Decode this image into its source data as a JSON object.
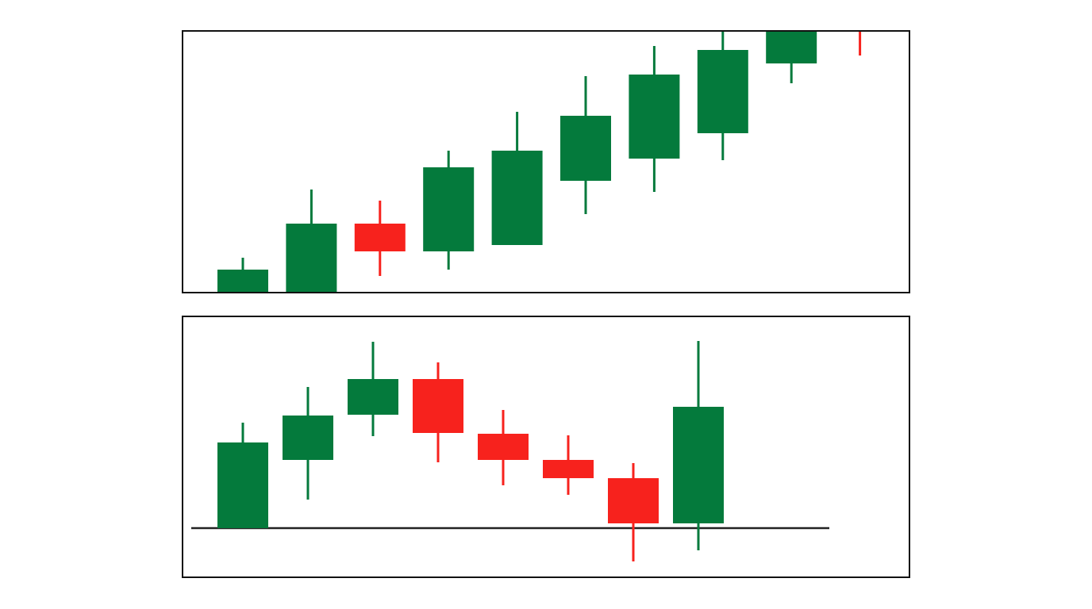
{
  "chart_data": [
    {
      "type": "candlestick",
      "ylim": [
        0,
        330
      ],
      "up_color": "#047a3c",
      "down_color": "#f7221d",
      "open": [
        0,
        0,
        87,
        52,
        60,
        141,
        169,
        201,
        289,
        345
      ],
      "high": [
        44,
        130,
        116,
        179,
        228,
        273,
        311,
        340,
        360,
        350
      ],
      "low": [
        0,
        0,
        21,
        29,
        60,
        99,
        127,
        167,
        264,
        299
      ],
      "close": [
        29,
        87,
        52,
        158,
        179,
        223,
        275,
        306,
        345,
        330
      ]
    },
    {
      "type": "candlestick",
      "ylim": [
        0,
        329
      ],
      "up_color": "#047a3c",
      "down_color": "#f7221d",
      "open": [
        62,
        148,
        205,
        250,
        181,
        148,
        125,
        68
      ],
      "high": [
        195,
        240,
        297,
        271,
        211,
        179,
        144,
        298
      ],
      "low": [
        62,
        98,
        178,
        145,
        116,
        104,
        20,
        34
      ],
      "close": [
        170,
        204,
        250,
        182,
        148,
        125,
        68,
        215
      ]
    }
  ]
}
